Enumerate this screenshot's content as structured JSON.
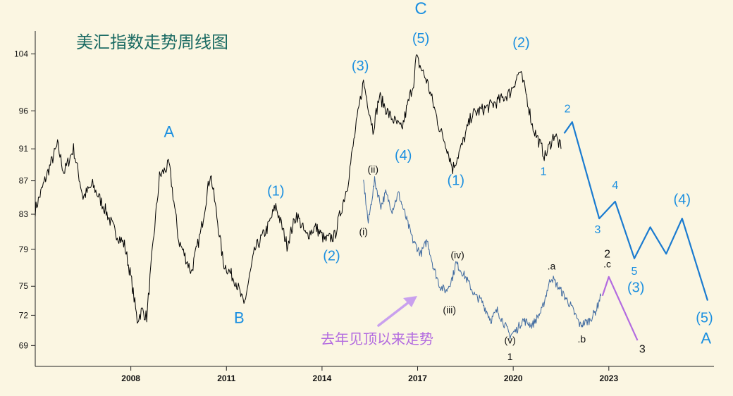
{
  "chart_data": {
    "type": "line",
    "title": "美汇指数走势周线图",
    "annotation_text": "去年见顶以来走势",
    "x_ticks": [
      "2008",
      "2011",
      "2014",
      "2017",
      "2020",
      "2023"
    ],
    "y_ticks": [
      "69",
      "72",
      "75",
      "79",
      "83",
      "87",
      "91",
      "96",
      "104"
    ],
    "ylim": [
      67,
      110
    ],
    "series": [
      {
        "role": "main",
        "color": "#000000",
        "points": [
          [
            2005.0,
            83.5
          ],
          [
            2005.3,
            87.0
          ],
          [
            2005.7,
            91.5
          ],
          [
            2005.9,
            88.0
          ],
          [
            2006.2,
            91.0
          ],
          [
            2006.5,
            85.0
          ],
          [
            2006.8,
            86.5
          ],
          [
            2007.2,
            83.5
          ],
          [
            2007.5,
            81.0
          ],
          [
            2007.8,
            79.5
          ],
          [
            2008.0,
            76.0
          ],
          [
            2008.2,
            71.5
          ],
          [
            2008.35,
            72.5
          ],
          [
            2008.5,
            71.8
          ],
          [
            2008.9,
            87.5
          ],
          [
            2009.2,
            89.0
          ],
          [
            2009.5,
            80.0
          ],
          [
            2009.9,
            76.5
          ],
          [
            2010.2,
            81.0
          ],
          [
            2010.5,
            88.0
          ],
          [
            2010.9,
            77.5
          ],
          [
            2011.3,
            75.5
          ],
          [
            2011.55,
            73.0
          ],
          [
            2011.9,
            79.0
          ],
          [
            2012.3,
            81.5
          ],
          [
            2012.55,
            84.0
          ],
          [
            2012.9,
            79.5
          ],
          [
            2013.2,
            83.0
          ],
          [
            2013.5,
            80.5
          ],
          [
            2013.8,
            81.5
          ],
          [
            2014.1,
            80.0
          ],
          [
            2014.4,
            80.5
          ],
          [
            2014.8,
            86.5
          ],
          [
            2015.2,
            97.5
          ],
          [
            2015.3,
            100.0
          ],
          [
            2015.6,
            93.5
          ],
          [
            2015.8,
            98.0
          ],
          [
            2016.1,
            95.5
          ],
          [
            2016.5,
            93.5
          ],
          [
            2016.7,
            97.0
          ],
          [
            2016.9,
            100.5
          ],
          [
            2016.95,
            103.5
          ],
          [
            2017.3,
            100.0
          ],
          [
            2017.7,
            93.5
          ],
          [
            2017.9,
            91.5
          ],
          [
            2018.1,
            88.5
          ],
          [
            2018.4,
            91.5
          ],
          [
            2018.7,
            95.5
          ],
          [
            2019.2,
            96.5
          ],
          [
            2019.6,
            97.5
          ],
          [
            2019.9,
            98.5
          ],
          [
            2020.2,
            101.5
          ],
          [
            2020.4,
            98.5
          ],
          [
            2020.6,
            94.0
          ],
          [
            2021.0,
            90.0
          ],
          [
            2021.3,
            93.0
          ],
          [
            2021.5,
            91.0
          ]
        ]
      },
      {
        "role": "inset",
        "color": "#3f6aa0",
        "points": [
          [
            2015.3,
            87.0
          ],
          [
            2015.45,
            82.0
          ],
          [
            2015.65,
            87.0
          ],
          [
            2015.85,
            84.0
          ],
          [
            2016.0,
            85.5
          ],
          [
            2016.2,
            83.5
          ],
          [
            2016.4,
            85.5
          ],
          [
            2016.6,
            83.0
          ],
          [
            2016.85,
            80.0
          ],
          [
            2017.1,
            78.5
          ],
          [
            2017.3,
            80.0
          ],
          [
            2017.5,
            77.0
          ],
          [
            2017.7,
            75.0
          ],
          [
            2017.9,
            74.5
          ],
          [
            2018.1,
            76.0
          ],
          [
            2018.2,
            77.5
          ],
          [
            2018.5,
            76.0
          ],
          [
            2018.8,
            74.0
          ],
          [
            2019.0,
            73.5
          ],
          [
            2019.3,
            71.5
          ],
          [
            2019.5,
            72.5
          ],
          [
            2019.9,
            70.0
          ],
          [
            2020.1,
            70.5
          ],
          [
            2020.3,
            71.5
          ],
          [
            2020.6,
            71.0
          ],
          [
            2020.9,
            72.5
          ],
          [
            2021.1,
            75.0
          ],
          [
            2021.2,
            76.0
          ],
          [
            2021.5,
            74.5
          ],
          [
            2021.8,
            73.0
          ],
          [
            2022.1,
            71.0
          ],
          [
            2022.4,
            71.5
          ],
          [
            2022.6,
            72.5
          ],
          [
            2022.75,
            74.0
          ]
        ]
      },
      {
        "role": "forecast-main",
        "color": "#1a7bd0",
        "points": [
          [
            2021.6,
            93.0
          ],
          [
            2021.85,
            94.5
          ],
          [
            2022.7,
            82.5
          ],
          [
            2023.2,
            84.5
          ],
          [
            2023.8,
            78.0
          ],
          [
            2024.3,
            81.5
          ],
          [
            2024.8,
            78.5
          ],
          [
            2025.3,
            82.5
          ],
          [
            2026.1,
            73.5
          ]
        ]
      },
      {
        "role": "forecast-inset",
        "color": "#b36be0",
        "points": [
          [
            2022.8,
            74.0
          ],
          [
            2023.0,
            76.0
          ],
          [
            2023.9,
            69.5
          ]
        ]
      }
    ],
    "wave_labels": [
      {
        "text": "A",
        "x": 2009.2,
        "y": 92.5,
        "color": "#1a8fe0",
        "size": 22
      },
      {
        "text": "B",
        "x": 2011.4,
        "y": 71.2,
        "color": "#1a8fe0",
        "size": 22
      },
      {
        "text": "C",
        "x": 2017.1,
        "y": 110.0,
        "color": "#1a8fe0",
        "size": 24
      },
      {
        "text": "(5)",
        "x": 2017.1,
        "y": 105.6,
        "color": "#1a8fe0",
        "size": 20
      },
      {
        "text": "(3)",
        "x": 2015.2,
        "y": 101.6,
        "color": "#1a8fe0",
        "size": 20
      },
      {
        "text": "(4)",
        "x": 2016.55,
        "y": 89.6,
        "color": "#1a8fe0",
        "size": 20
      },
      {
        "text": "(1)",
        "x": 2012.55,
        "y": 85.2,
        "color": "#1a8fe0",
        "size": 20
      },
      {
        "text": "(2)",
        "x": 2014.3,
        "y": 77.8,
        "color": "#1a8fe0",
        "size": 20
      },
      {
        "text": "(1)",
        "x": 2018.2,
        "y": 86.5,
        "color": "#1a8fe0",
        "size": 20
      },
      {
        "text": "(2)",
        "x": 2020.25,
        "y": 105.0,
        "color": "#1a8fe0",
        "size": 20
      },
      {
        "text": "1",
        "x": 2020.95,
        "y": 87.7,
        "color": "#1a8fe0",
        "size": 16
      },
      {
        "text": "2",
        "x": 2021.7,
        "y": 95.8,
        "color": "#1a8fe0",
        "size": 16
      },
      {
        "text": "3",
        "x": 2022.65,
        "y": 80.8,
        "color": "#1a8fe0",
        "size": 16
      },
      {
        "text": "4",
        "x": 2023.2,
        "y": 86.0,
        "color": "#1a8fe0",
        "size": 16
      },
      {
        "text": "5",
        "x": 2023.8,
        "y": 76.2,
        "color": "#1a8fe0",
        "size": 16
      },
      {
        "text": "(3)",
        "x": 2023.85,
        "y": 74.4,
        "color": "#1a8fe0",
        "size": 20
      },
      {
        "text": "(4)",
        "x": 2025.3,
        "y": 84.2,
        "color": "#1a8fe0",
        "size": 20
      },
      {
        "text": "(5)",
        "x": 2026.0,
        "y": 71.3,
        "color": "#1a8fe0",
        "size": 20
      },
      {
        "text": "A",
        "x": 2026.05,
        "y": 69.2,
        "color": "#1a8fe0",
        "size": 22
      },
      {
        "text": "(i)",
        "x": 2015.3,
        "y": 80.6,
        "color": "#111111",
        "size": 14
      },
      {
        "text": "(ii)",
        "x": 2015.6,
        "y": 88.0,
        "color": "#111111",
        "size": 14
      },
      {
        "text": "(iii)",
        "x": 2018.0,
        "y": 72.2,
        "color": "#111111",
        "size": 14
      },
      {
        "text": "(iv)",
        "x": 2018.25,
        "y": 78.0,
        "color": "#111111",
        "size": 14
      },
      {
        "text": "(v)",
        "x": 2019.9,
        "y": 69.2,
        "color": "#111111",
        "size": 14
      },
      {
        "text": "1",
        "x": 2019.9,
        "y": 67.6,
        "color": "#111111",
        "size": 14
      },
      {
        "text": ".a",
        "x": 2021.2,
        "y": 76.8,
        "color": "#111111",
        "size": 14
      },
      {
        "text": ".b",
        "x": 2022.15,
        "y": 69.3,
        "color": "#111111",
        "size": 14
      },
      {
        "text": "2",
        "x": 2022.95,
        "y": 78.1,
        "color": "#111111",
        "size": 16
      },
      {
        "text": ".c",
        "x": 2022.95,
        "y": 77.0,
        "color": "#111111",
        "size": 14
      },
      {
        "text": "3",
        "x": 2024.05,
        "y": 68.3,
        "color": "#111111",
        "size": 16
      }
    ],
    "colors": {
      "background": "#fbf6e2",
      "title": "#1b6b63",
      "axis": "#222222",
      "annotation": "#b36be0"
    }
  }
}
